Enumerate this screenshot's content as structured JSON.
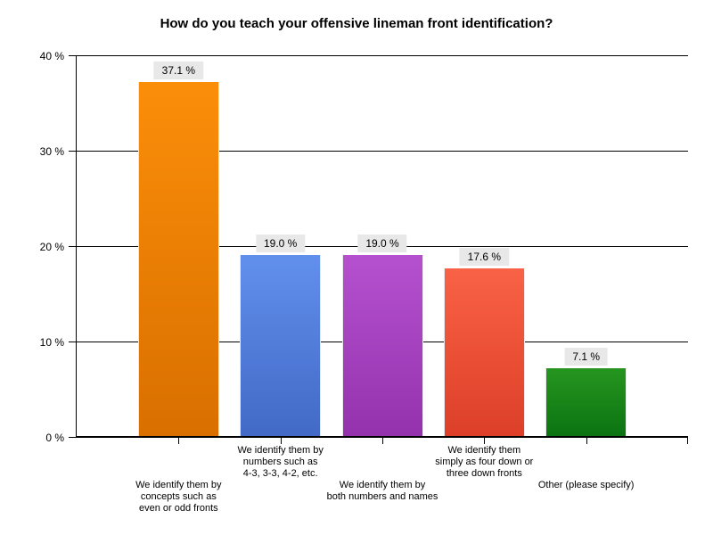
{
  "chart_data": {
    "type": "bar",
    "title": "How do you teach your offensive lineman front identification?",
    "categories": [
      "We identify them by\nconcepts such as\neven or odd fronts",
      "We identify them by\nnumbers such as\n4-3, 3-3, 4-2, etc.",
      "We identify them by\nboth numbers and names",
      "We identify them\nsimply as four down or\nthree down fronts",
      "Other (please specify)"
    ],
    "values": [
      37.1,
      19.0,
      19.0,
      17.6,
      7.1
    ],
    "value_labels": [
      "37.1 %",
      "19.0 %",
      "19.0 %",
      "17.6 %",
      "7.1 %"
    ],
    "bar_colors": [
      {
        "top": "#fb8e09",
        "bottom": "#d96f00"
      },
      {
        "top": "#6190ec",
        "bottom": "#4269c6"
      },
      {
        "top": "#b551ce",
        "bottom": "#9432ae"
      },
      {
        "top": "#f96246",
        "bottom": "#dd3f28"
      },
      {
        "top": "#26951f",
        "bottom": "#0b7412"
      }
    ],
    "label_rows": [
      "low",
      "high",
      "low",
      "high",
      "low"
    ],
    "xlabel": "",
    "ylabel": "",
    "ylim": [
      0,
      40
    ],
    "yticks": [
      0,
      10,
      20,
      30,
      40
    ],
    "ytick_labels": [
      "0 %",
      "10 %",
      "20 %",
      "30 %",
      "40 %"
    ],
    "grid": true,
    "legend": "none",
    "value_label_bg": "#e8e8e8",
    "axis_color": "#000000"
  }
}
